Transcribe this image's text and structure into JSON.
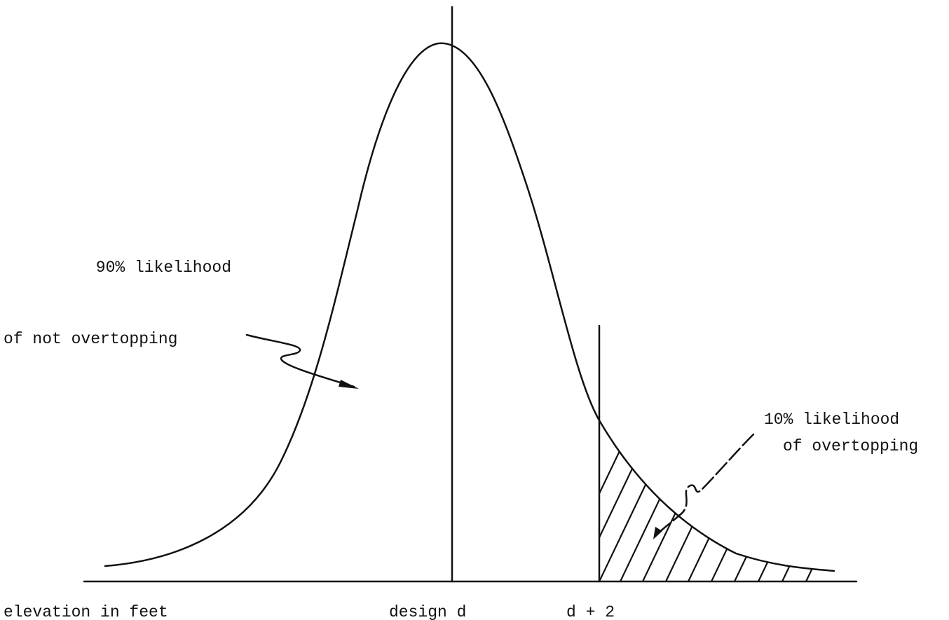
{
  "labels": {
    "left_note": [
      "90% likelihood",
      "of not overtopping"
    ],
    "right_note": [
      "10% likelihood",
      "of overtopping"
    ],
    "axis": {
      "left": "elevation in feet",
      "center": "design d",
      "right": "d + 2"
    }
  }
}
